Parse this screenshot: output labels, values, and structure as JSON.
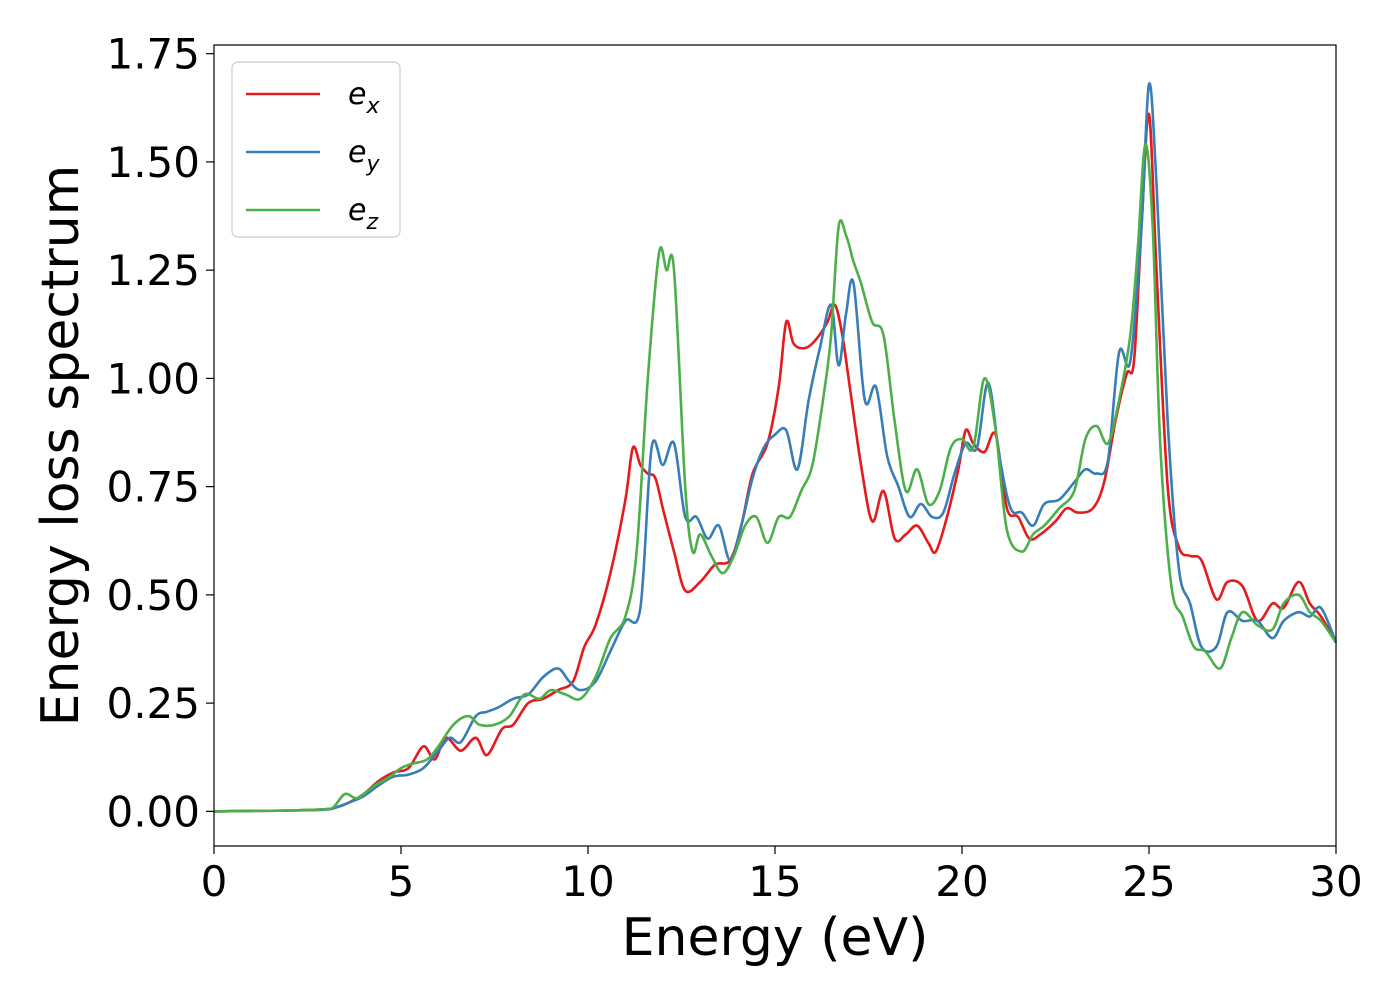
{
  "chart_data": {
    "type": "line",
    "title": "",
    "xlabel": "Energy (eV)",
    "ylabel": "Energy loss spectrum",
    "xlim": [
      0,
      30
    ],
    "ylim": [
      -0.08,
      1.77
    ],
    "xticks": [
      0,
      5,
      10,
      15,
      20,
      25,
      30
    ],
    "xtick_labels": [
      "0",
      "5",
      "10",
      "15",
      "20",
      "25",
      "30"
    ],
    "yticks": [
      0,
      0.25,
      0.5,
      0.75,
      1.0,
      1.25,
      1.5,
      1.75
    ],
    "ytick_labels": [
      "0.00",
      "0.25",
      "0.50",
      "0.75",
      "1.00",
      "1.25",
      "1.50",
      "1.75"
    ],
    "grid": false,
    "legend_position": "top-left",
    "series": [
      {
        "name": "e_x",
        "label_base": "e",
        "label_sub": "x",
        "color": "#e41a1c",
        "x": [
          0,
          1,
          2,
          3,
          3.3,
          3.6,
          4.0,
          4.4,
          4.8,
          5.2,
          5.6,
          5.9,
          6.2,
          6.6,
          7.0,
          7.3,
          7.7,
          8.0,
          8.4,
          8.8,
          9.2,
          9.6,
          9.9,
          10.2,
          10.6,
          11.0,
          11.2,
          11.4,
          11.6,
          11.8,
          12.0,
          12.3,
          12.6,
          13.0,
          13.4,
          13.8,
          14.1,
          14.4,
          14.8,
          15.1,
          15.3,
          15.5,
          15.8,
          16.1,
          16.4,
          16.6,
          16.8,
          17.0,
          17.3,
          17.6,
          17.9,
          18.2,
          18.5,
          18.8,
          19.1,
          19.3,
          19.6,
          19.9,
          20.1,
          20.3,
          20.6,
          20.9,
          21.2,
          21.5,
          21.8,
          22.1,
          22.5,
          22.8,
          23.1,
          23.5,
          23.8,
          24.1,
          24.4,
          24.6,
          24.8,
          25.0,
          25.2,
          25.5,
          25.8,
          26.1,
          26.4,
          26.8,
          27.1,
          27.5,
          27.9,
          28.3,
          28.6,
          29.0,
          29.3,
          29.6,
          30.0
        ],
        "values": [
          0,
          0.001,
          0.002,
          0.005,
          0.01,
          0.02,
          0.04,
          0.07,
          0.09,
          0.1,
          0.15,
          0.12,
          0.17,
          0.14,
          0.17,
          0.13,
          0.19,
          0.2,
          0.25,
          0.26,
          0.28,
          0.3,
          0.38,
          0.43,
          0.55,
          0.72,
          0.84,
          0.8,
          0.78,
          0.77,
          0.7,
          0.6,
          0.51,
          0.53,
          0.57,
          0.58,
          0.66,
          0.78,
          0.85,
          0.98,
          1.13,
          1.08,
          1.07,
          1.09,
          1.13,
          1.17,
          1.1,
          0.98,
          0.8,
          0.67,
          0.74,
          0.63,
          0.64,
          0.66,
          0.62,
          0.6,
          0.68,
          0.79,
          0.88,
          0.85,
          0.83,
          0.87,
          0.7,
          0.68,
          0.63,
          0.64,
          0.67,
          0.7,
          0.69,
          0.7,
          0.76,
          0.9,
          1.01,
          1.04,
          1.35,
          1.61,
          1.25,
          0.75,
          0.61,
          0.59,
          0.58,
          0.49,
          0.53,
          0.52,
          0.44,
          0.48,
          0.47,
          0.53,
          0.48,
          0.45,
          0.39
        ]
      },
      {
        "name": "e_y",
        "label_base": "e",
        "label_sub": "y",
        "color": "#377eb8",
        "x": [
          0,
          1,
          2,
          3,
          3.3,
          3.6,
          4.0,
          4.4,
          4.8,
          5.2,
          5.6,
          6.0,
          6.3,
          6.6,
          7.0,
          7.3,
          7.6,
          8.0,
          8.4,
          8.8,
          9.2,
          9.5,
          9.8,
          10.2,
          10.6,
          11.0,
          11.4,
          11.7,
          12.0,
          12.3,
          12.6,
          12.9,
          13.2,
          13.5,
          13.8,
          14.1,
          14.4,
          14.7,
          15.0,
          15.3,
          15.6,
          15.9,
          16.2,
          16.5,
          16.7,
          16.9,
          17.1,
          17.4,
          17.7,
          18.0,
          18.3,
          18.6,
          18.9,
          19.2,
          19.5,
          19.8,
          20.1,
          20.4,
          20.7,
          21.0,
          21.3,
          21.6,
          21.9,
          22.2,
          22.6,
          23.0,
          23.3,
          23.6,
          23.9,
          24.2,
          24.5,
          24.8,
          25.0,
          25.2,
          25.5,
          25.8,
          26.1,
          26.4,
          26.8,
          27.1,
          27.5,
          27.9,
          28.3,
          28.6,
          29.0,
          29.3,
          29.6,
          30.0
        ],
        "values": [
          0,
          0.001,
          0.002,
          0.004,
          0.01,
          0.02,
          0.035,
          0.06,
          0.08,
          0.085,
          0.1,
          0.14,
          0.17,
          0.16,
          0.22,
          0.23,
          0.24,
          0.26,
          0.27,
          0.31,
          0.33,
          0.3,
          0.28,
          0.3,
          0.37,
          0.44,
          0.47,
          0.84,
          0.8,
          0.85,
          0.68,
          0.68,
          0.63,
          0.66,
          0.58,
          0.66,
          0.77,
          0.84,
          0.87,
          0.88,
          0.79,
          0.95,
          1.07,
          1.17,
          1.03,
          1.15,
          1.22,
          0.95,
          0.98,
          0.82,
          0.75,
          0.68,
          0.71,
          0.68,
          0.69,
          0.78,
          0.85,
          0.84,
          0.99,
          0.82,
          0.7,
          0.69,
          0.66,
          0.71,
          0.72,
          0.76,
          0.79,
          0.78,
          0.81,
          1.06,
          1.04,
          1.35,
          1.68,
          1.45,
          0.9,
          0.56,
          0.48,
          0.38,
          0.38,
          0.46,
          0.44,
          0.44,
          0.4,
          0.44,
          0.46,
          0.45,
          0.47,
          0.39
        ]
      },
      {
        "name": "e_z",
        "label_base": "e",
        "label_sub": "z",
        "color": "#4daf4a",
        "x": [
          0,
          1,
          2,
          3,
          3.2,
          3.5,
          3.8,
          4.0,
          4.3,
          4.7,
          5.0,
          5.3,
          5.7,
          6.0,
          6.4,
          6.8,
          7.1,
          7.5,
          7.9,
          8.3,
          8.7,
          9.0,
          9.4,
          9.8,
          10.2,
          10.6,
          11.0,
          11.3,
          11.6,
          11.9,
          12.1,
          12.3,
          12.6,
          12.8,
          13.0,
          13.3,
          13.6,
          13.9,
          14.2,
          14.5,
          14.8,
          15.1,
          15.4,
          15.7,
          16.0,
          16.3,
          16.5,
          16.7,
          16.9,
          17.1,
          17.3,
          17.6,
          17.9,
          18.2,
          18.5,
          18.8,
          19.1,
          19.4,
          19.7,
          20.0,
          20.3,
          20.6,
          20.9,
          21.2,
          21.6,
          21.9,
          22.2,
          22.6,
          23.0,
          23.3,
          23.6,
          23.9,
          24.2,
          24.5,
          24.7,
          24.9,
          25.1,
          25.3,
          25.6,
          25.9,
          26.2,
          26.5,
          26.9,
          27.2,
          27.5,
          27.9,
          28.3,
          28.6,
          29.0,
          29.3,
          29.6,
          30.0
        ],
        "values": [
          0,
          0.001,
          0.002,
          0.005,
          0.01,
          0.04,
          0.03,
          0.04,
          0.06,
          0.08,
          0.1,
          0.11,
          0.12,
          0.15,
          0.2,
          0.22,
          0.2,
          0.2,
          0.22,
          0.27,
          0.26,
          0.28,
          0.27,
          0.26,
          0.31,
          0.4,
          0.45,
          0.6,
          1.0,
          1.29,
          1.25,
          1.25,
          0.75,
          0.6,
          0.64,
          0.59,
          0.55,
          0.59,
          0.66,
          0.68,
          0.62,
          0.68,
          0.68,
          0.74,
          0.8,
          0.96,
          1.1,
          1.35,
          1.33,
          1.27,
          1.22,
          1.13,
          1.1,
          0.9,
          0.74,
          0.79,
          0.71,
          0.74,
          0.84,
          0.86,
          0.84,
          1.0,
          0.88,
          0.65,
          0.6,
          0.64,
          0.66,
          0.7,
          0.74,
          0.86,
          0.89,
          0.85,
          0.95,
          1.1,
          1.3,
          1.54,
          1.35,
          0.85,
          0.52,
          0.45,
          0.38,
          0.37,
          0.33,
          0.4,
          0.46,
          0.43,
          0.42,
          0.48,
          0.5,
          0.46,
          0.44,
          0.39
        ]
      }
    ]
  }
}
